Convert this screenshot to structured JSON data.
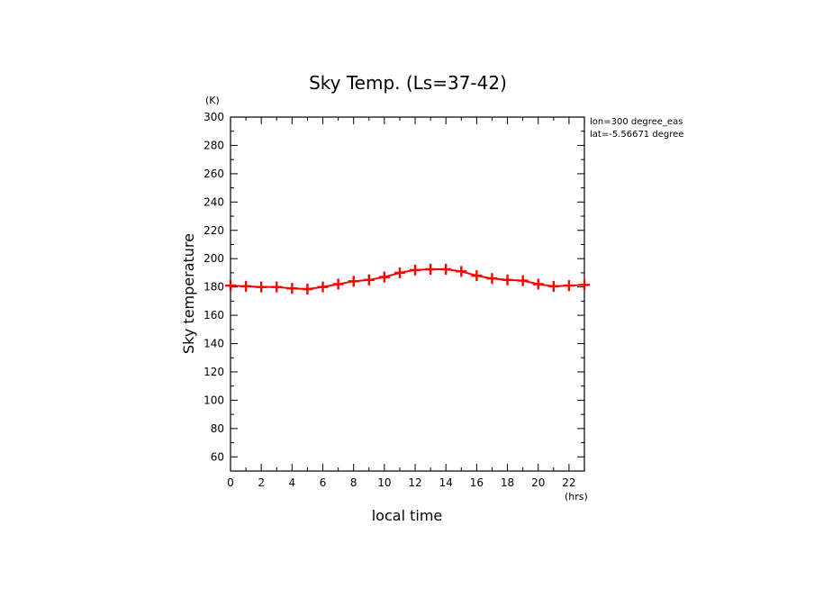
{
  "chart_data": {
    "type": "line",
    "title": "Sky Temp. (Ls=37-42)",
    "xlabel": "local time",
    "ylabel": "Sky temperature",
    "x_unit": "(hrs)",
    "y_unit": "(K)",
    "annotations": [
      "lon=300 degree_eas",
      "lat=-5.56671 degree"
    ],
    "xlim": [
      0,
      23
    ],
    "ylim": [
      50,
      300
    ],
    "x_ticks": [
      0,
      2,
      4,
      6,
      8,
      10,
      12,
      14,
      16,
      18,
      20,
      22
    ],
    "y_ticks": [
      60,
      80,
      100,
      120,
      140,
      160,
      180,
      200,
      220,
      240,
      260,
      280,
      300
    ],
    "grid": false,
    "series_color": "#ff0000",
    "series": [
      {
        "x": [
          0,
          1,
          2,
          3,
          4,
          5,
          6,
          7,
          8,
          9,
          10,
          11,
          12,
          13,
          14,
          15,
          16,
          17,
          18,
          19,
          20,
          21,
          22,
          23
        ],
        "values": [
          181,
          180.5,
          180,
          180,
          179,
          178.5,
          180,
          182,
          184,
          185,
          187,
          190,
          192,
          192.5,
          192.5,
          191,
          188,
          186,
          185,
          184.5,
          182,
          180.5,
          181,
          181.5
        ]
      }
    ]
  }
}
